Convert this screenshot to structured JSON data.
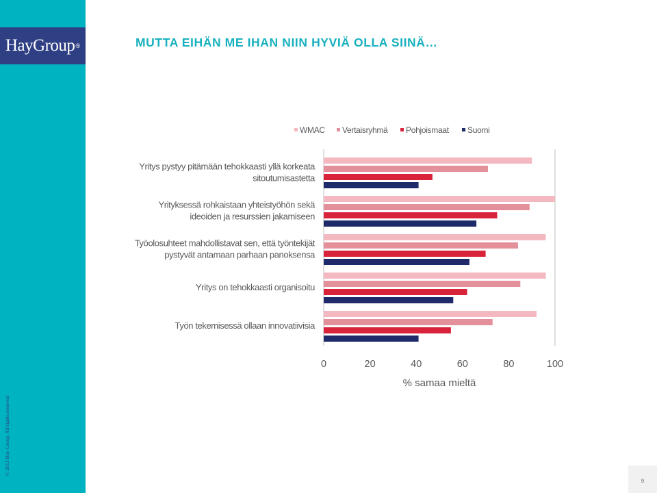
{
  "brand": {
    "logo_text": "HayGroup",
    "registered_mark": "®"
  },
  "slide": {
    "title": "MUTTA EIHÄN ME IHAN NIIN HYVIÄ OLLA SIINÄ…",
    "page_number": "9",
    "copyright": "© 2013 Hay Group. All rights reserved"
  },
  "colors": {
    "sidebar": "#00b3c0",
    "logo_bg": "#2e3f83",
    "title": "#17b0be",
    "wmac": "#f4b8c1",
    "vertaisryhma": "#e3909a",
    "pohjoismaat": "#d9233a",
    "suomi": "#1f2a6b"
  },
  "chart_data": {
    "type": "bar",
    "orientation": "horizontal",
    "categories": [
      [
        "Yritys pystyy pitämään tehokkaasti yllä korkeata",
        "sitoutumisastetta"
      ],
      [
        "Yrityksessä rohkaistaan yhteistyöhön sekä",
        "ideoiden ja resurssien jakamiseen"
      ],
      [
        "Työolosuhteet mahdollistavat sen, että työntekijät",
        "pystyvät antamaan parhaan panoksensa"
      ],
      [
        "Yritys on tehokkaasti organisoitu"
      ],
      [
        "Työn tekemisessä ollaan innovatiivisia"
      ]
    ],
    "series": [
      {
        "name": "WMAC",
        "color": "#f4b8c1",
        "values": [
          90,
          100,
          96,
          96,
          92
        ]
      },
      {
        "name": "Vertaisryhmä",
        "color": "#e3909a",
        "values": [
          71,
          89,
          84,
          85,
          73
        ]
      },
      {
        "name": "Pohjoismaat",
        "color": "#d9233a",
        "values": [
          47,
          75,
          70,
          62,
          55
        ]
      },
      {
        "name": "Suomi",
        "color": "#1f2a6b",
        "values": [
          41,
          66,
          63,
          56,
          41
        ]
      }
    ],
    "xlabel": "% samaa mieltä",
    "xlim": [
      0,
      100
    ],
    "xticks": [
      0,
      20,
      40,
      60,
      80,
      100
    ],
    "legend_position": "top",
    "grid": false
  }
}
